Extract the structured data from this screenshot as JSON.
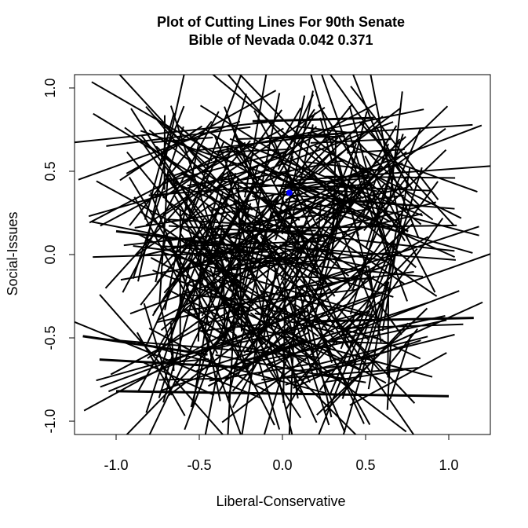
{
  "chart_data": {
    "type": "line",
    "title": "Plot of Cutting Lines For 90th Senate",
    "subtitle": "Bible of Nevada  0.042  0.371",
    "xlabel": "Liberal-Conservative",
    "ylabel": "Social-Issues",
    "xlim": [
      -1.25,
      1.25
    ],
    "ylim": [
      -1.08,
      1.08
    ],
    "x_ticks": [
      -1.0,
      -0.5,
      0.0,
      0.5,
      1.0
    ],
    "x_tick_labels": [
      "-1.0",
      "-0.5",
      "0.0",
      "0.5",
      "1.0"
    ],
    "y_ticks": [
      -1.0,
      -0.5,
      0.0,
      0.5,
      1.0
    ],
    "y_tick_labels": [
      "-1.0",
      "-0.5",
      "0.0",
      "0.5",
      "1.0"
    ],
    "grid": false,
    "legend": "none",
    "point": {
      "x": 0.042,
      "y": 0.371,
      "color": "#0000ff"
    },
    "line_color": "#000000",
    "line_count": 420,
    "cutting_line_radius": 1.0,
    "segments": [
      [
        [
          -1.0,
          -0.82
        ],
        [
          1.0,
          -0.85
        ]
      ],
      [
        [
          -1.2,
          -0.49
        ],
        [
          -0.45,
          -0.6
        ]
      ],
      [
        [
          -1.1,
          -0.63
        ],
        [
          -0.2,
          -0.68
        ]
      ],
      [
        [
          -1.0,
          0.14
        ],
        [
          -0.1,
          0.03
        ]
      ],
      [
        [
          0.2,
          -0.4
        ],
        [
          1.15,
          -0.38
        ]
      ],
      [
        [
          -0.18,
          0.8
        ],
        [
          0.55,
          0.82
        ]
      ]
    ]
  }
}
